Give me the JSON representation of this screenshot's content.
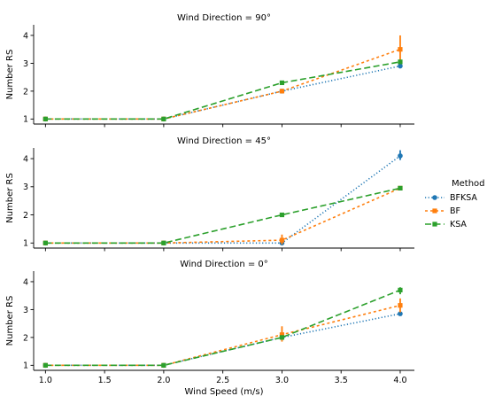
{
  "figure": {
    "xlabel": "Wind Speed (m/s)",
    "x_tick_labels": [
      "1.0",
      "1.5",
      "2.0",
      "2.5",
      "3.0",
      "3.5",
      "4.0"
    ],
    "legend": {
      "title": "Method",
      "entries": [
        {
          "label": "BFKSA",
          "marker": "circle",
          "dash": "dotted"
        },
        {
          "label": "BF",
          "marker": "square",
          "dash": "dashed-short"
        },
        {
          "label": "KSA",
          "marker": "square",
          "dash": "dashed-long"
        }
      ]
    },
    "colors": {
      "BFKSA": "#1f77b4",
      "BF": "#ff7f0e",
      "KSA": "#2ca02c"
    }
  },
  "chart_data": [
    {
      "type": "line",
      "title": "Wind Direction = 90°",
      "xlabel": "",
      "ylabel": "Number RS",
      "xlim": [
        0.9,
        4.12
      ],
      "ylim": [
        0.82,
        4.38
      ],
      "yticks": [
        1,
        2,
        3,
        4
      ],
      "x": [
        1.0,
        2.0,
        3.0,
        4.0
      ],
      "series": [
        {
          "name": "BFKSA",
          "values": [
            1.0,
            1.0,
            2.0,
            2.9
          ],
          "err_low": [
            1.0,
            1.0,
            2.0,
            2.85
          ],
          "err_high": [
            1.0,
            1.0,
            2.0,
            2.95
          ]
        },
        {
          "name": "BF",
          "values": [
            1.0,
            1.0,
            2.0,
            3.5
          ],
          "err_low": [
            1.0,
            1.0,
            1.95,
            3.05
          ],
          "err_high": [
            1.0,
            1.0,
            2.05,
            4.0
          ]
        },
        {
          "name": "KSA",
          "values": [
            1.0,
            1.0,
            2.3,
            3.05
          ],
          "err_low": [
            1.0,
            1.0,
            2.25,
            3.0
          ],
          "err_high": [
            1.0,
            1.0,
            2.35,
            3.1
          ]
        }
      ]
    },
    {
      "type": "line",
      "title": "Wind Direction = 45°",
      "xlabel": "",
      "ylabel": "Number RS",
      "xlim": [
        0.9,
        4.12
      ],
      "ylim": [
        0.82,
        4.38
      ],
      "yticks": [
        1,
        2,
        3,
        4
      ],
      "x": [
        1.0,
        2.0,
        3.0,
        4.0
      ],
      "series": [
        {
          "name": "BFKSA",
          "values": [
            1.0,
            1.0,
            1.0,
            4.1
          ],
          "err_low": [
            1.0,
            1.0,
            0.95,
            3.95
          ],
          "err_high": [
            1.0,
            1.0,
            1.05,
            4.3
          ]
        },
        {
          "name": "BF",
          "values": [
            1.0,
            1.0,
            1.1,
            2.95
          ],
          "err_low": [
            1.0,
            1.0,
            0.95,
            2.9
          ],
          "err_high": [
            1.0,
            1.0,
            1.3,
            3.0
          ]
        },
        {
          "name": "KSA",
          "values": [
            1.0,
            1.0,
            2.0,
            2.95
          ],
          "err_low": [
            1.0,
            1.0,
            1.95,
            2.9
          ],
          "err_high": [
            1.0,
            1.0,
            2.05,
            3.0
          ]
        }
      ]
    },
    {
      "type": "line",
      "title": "Wind Direction = 0°",
      "xlabel": "Wind Speed (m/s)",
      "ylabel": "Number RS",
      "xlim": [
        0.9,
        4.12
      ],
      "ylim": [
        0.82,
        4.38
      ],
      "yticks": [
        1,
        2,
        3,
        4
      ],
      "x": [
        1.0,
        2.0,
        3.0,
        4.0
      ],
      "series": [
        {
          "name": "BFKSA",
          "values": [
            1.0,
            1.0,
            2.0,
            2.85
          ],
          "err_low": [
            1.0,
            1.0,
            1.95,
            2.8
          ],
          "err_high": [
            1.0,
            1.0,
            2.05,
            2.9
          ]
        },
        {
          "name": "BF",
          "values": [
            1.0,
            1.0,
            2.1,
            3.15
          ],
          "err_low": [
            1.0,
            1.0,
            1.85,
            2.9
          ],
          "err_high": [
            1.0,
            1.0,
            2.4,
            3.4
          ]
        },
        {
          "name": "KSA",
          "values": [
            1.0,
            1.0,
            2.0,
            3.7
          ],
          "err_low": [
            1.0,
            1.0,
            1.95,
            3.55
          ],
          "err_high": [
            1.0,
            1.0,
            2.05,
            3.8
          ]
        }
      ]
    }
  ]
}
